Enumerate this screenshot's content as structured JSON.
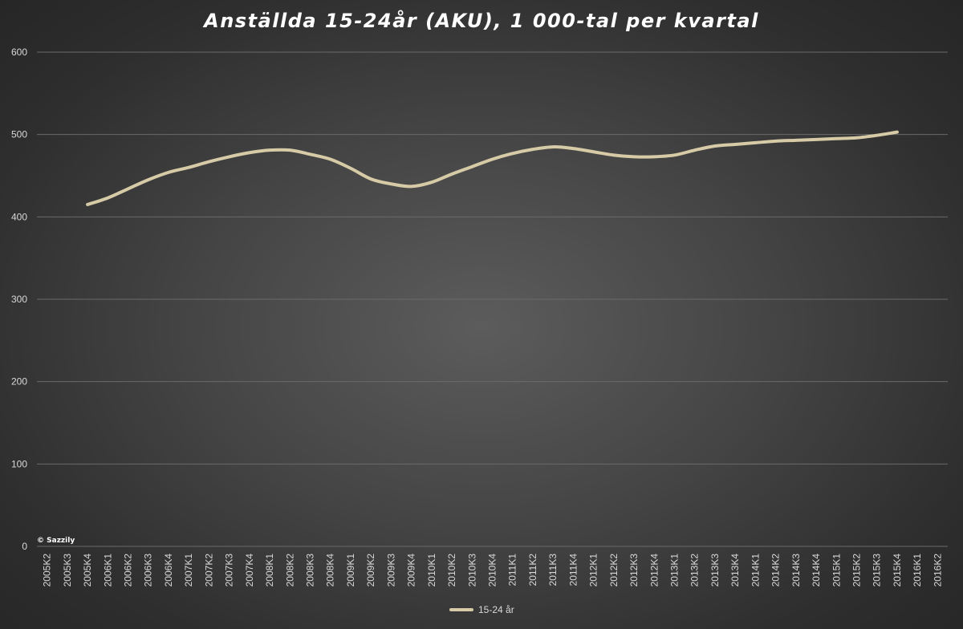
{
  "chart_data": {
    "type": "line",
    "title": "Anställda 15-24år (AKU), 1 000-tal per kvartal",
    "xlabel": "",
    "ylabel": "",
    "ylim": [
      0,
      600
    ],
    "yticks": [
      0,
      100,
      200,
      300,
      400,
      500,
      600
    ],
    "grid": "horizontal",
    "legend_position": "bottom",
    "categories": [
      "2005K2",
      "2005K3",
      "2005K4",
      "2006K1",
      "2006K2",
      "2006K3",
      "2006K4",
      "2007K1",
      "2007K2",
      "2007K3",
      "2007K4",
      "2008K1",
      "2008K2",
      "2008K3",
      "2008K4",
      "2009K1",
      "2009K2",
      "2009K3",
      "2009K4",
      "2010K1",
      "2010K2",
      "2010K3",
      "2010K4",
      "2011K1",
      "2011K2",
      "2011K3",
      "2011K4",
      "2012K1",
      "2012K2",
      "2012K3",
      "2012K4",
      "2013K1",
      "2013K2",
      "2013K3",
      "2013K4",
      "2014K1",
      "2014K2",
      "2014K3",
      "2014K4",
      "2015K1",
      "2015K2",
      "2015K3",
      "2015K4",
      "2016K1",
      "2016K2"
    ],
    "series": [
      {
        "name": "15-24 år",
        "color": "#d6cba6",
        "values": [
          null,
          null,
          415,
          423,
          434,
          445,
          454,
          460,
          467,
          473,
          478,
          481,
          481,
          476,
          470,
          459,
          446,
          440,
          437,
          442,
          452,
          461,
          470,
          477,
          482,
          485,
          483,
          479,
          475,
          473,
          473,
          475,
          481,
          486,
          488,
          490,
          492,
          493,
          494,
          495,
          496,
          499,
          503,
          null,
          null
        ]
      }
    ]
  },
  "watermark": "© Sazzily"
}
